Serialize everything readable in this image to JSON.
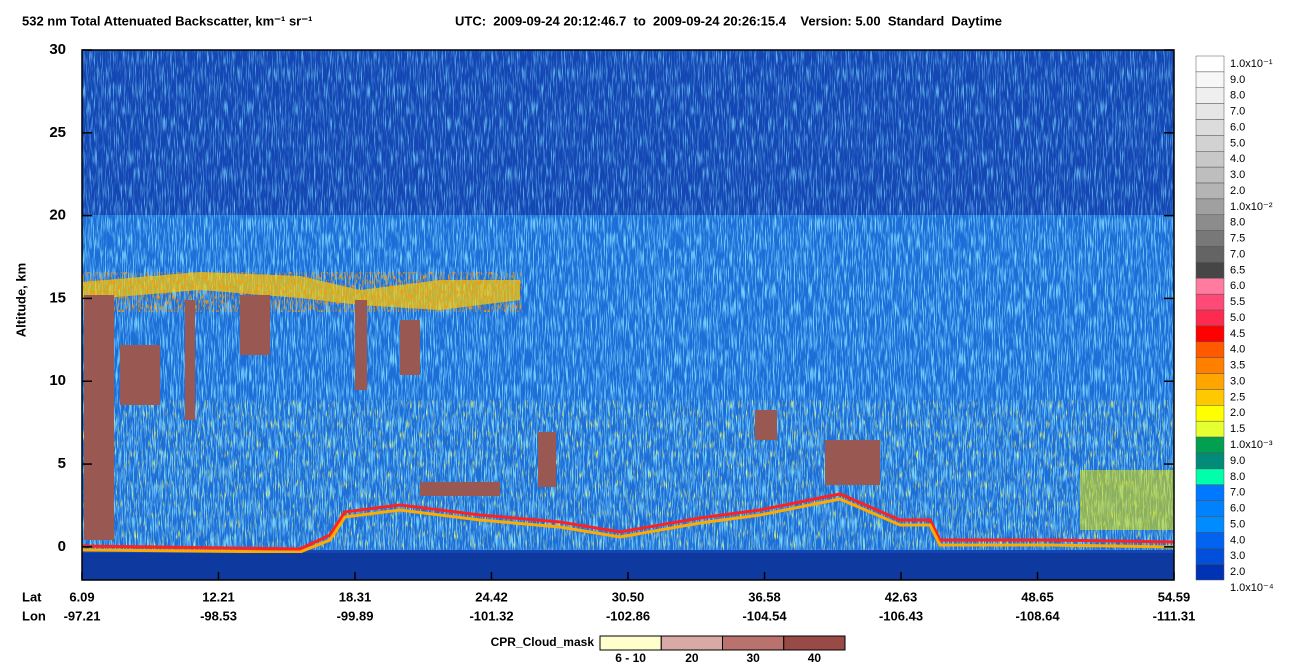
{
  "chart_data": {
    "type": "heatmap",
    "title": "532 nm Total Attenuated Backscatter, km⁻¹ sr⁻¹",
    "subtitle": "UTC:  2009-09-24 20:12:46.7  to  2009-09-24 20:26:15.4    Version: 5.00  Standard  Daytime",
    "ylabel": "Altitude, km",
    "ylim": [
      -2,
      30
    ],
    "yticks": [
      0,
      5,
      10,
      15,
      20,
      25,
      30
    ],
    "x_row_labels": [
      "Lat",
      "Lon"
    ],
    "lat": [
      "6.09",
      "12.21",
      "18.31",
      "24.42",
      "30.50",
      "36.58",
      "42.63",
      "48.65",
      "54.59"
    ],
    "lon": [
      "-97.21",
      "-98.53",
      "-99.89",
      "-101.32",
      "-102.86",
      "-104.54",
      "-106.43",
      "-108.64",
      "-111.31"
    ],
    "colorbar": {
      "labels": [
        "1.0x10⁻¹",
        "9.0",
        "8.0",
        "7.0",
        "6.0",
        "5.0",
        "4.0",
        "3.0",
        "2.0",
        "1.0x10⁻²",
        "8.0",
        "7.5",
        "7.0",
        "6.5",
        "6.0",
        "5.5",
        "5.0",
        "4.5",
        "4.0",
        "3.5",
        "3.0",
        "2.5",
        "2.0",
        "1.5",
        "1.0x10⁻³",
        "9.0",
        "8.0",
        "7.0",
        "6.0",
        "5.0",
        "4.0",
        "3.0",
        "2.0",
        "1.0x10⁻⁴"
      ],
      "colors": [
        "#ffffff",
        "#f7f7f7",
        "#efefef",
        "#e6e6e6",
        "#dcdcdc",
        "#d2d2d2",
        "#c8c8c8",
        "#bebebe",
        "#b4b4b4",
        "#a0a0a0",
        "#8c8c8c",
        "#787878",
        "#646464",
        "#464646",
        "#ff7ba0",
        "#ff4a78",
        "#ff2a50",
        "#ff0000",
        "#ff5a00",
        "#ff8000",
        "#ffa500",
        "#ffc800",
        "#ffff00",
        "#e6ff30",
        "#00a050",
        "#008c78",
        "#00ffaa",
        "#0078ff",
        "#0082ff",
        "#008cff",
        "#0064f0",
        "#0050dc",
        "#0032b4",
        "#1428a0"
      ]
    },
    "cloud_mask": {
      "label": "CPR_Cloud_mask",
      "categories": [
        "6 - 10",
        "20",
        "30",
        "40"
      ],
      "colors": [
        "#ffffcc",
        "#d9a9a6",
        "#b9726e",
        "#984a46"
      ]
    }
  }
}
